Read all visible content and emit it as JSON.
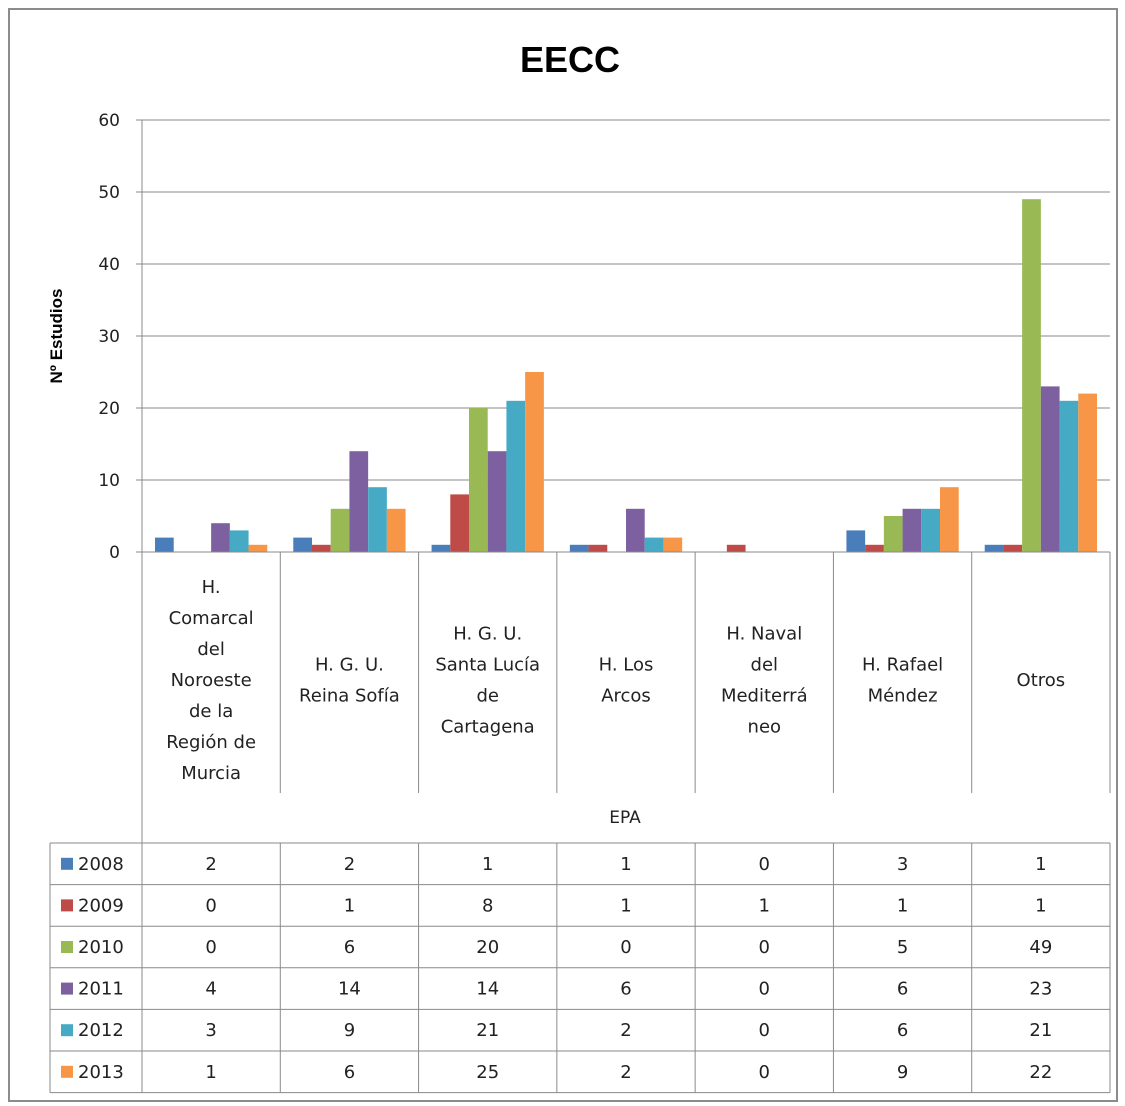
{
  "chart_data": {
    "type": "bar",
    "title": "EECC",
    "xlabel": "EPA",
    "ylabel": "Nº Estudios",
    "ylim": [
      0,
      60
    ],
    "yticks": [
      0,
      10,
      20,
      30,
      40,
      50,
      60
    ],
    "grid": true,
    "legend": "data-table",
    "categories": [
      "H. Comarcal del Noroeste de la Región de Murcia",
      "H. G. U. Reina Sofía",
      "H. G. U. Santa Lucía de Cartagena",
      "H. Los Arcos",
      "H. Naval del Mediterráneo",
      "H. Rafael Méndez",
      "Otros"
    ],
    "category_lines": [
      [
        "H.",
        "Comarcal",
        "del",
        "Noroeste",
        "de la",
        "Región de",
        "Murcia"
      ],
      [
        "H. G. U.",
        "Reina Sofía"
      ],
      [
        "H. G. U.",
        "Santa Lucía",
        "de",
        "Cartagena"
      ],
      [
        "H. Los",
        "Arcos"
      ],
      [
        "H. Naval",
        "del",
        "Mediterrá",
        "neo"
      ],
      [
        "H. Rafael",
        "Méndez"
      ],
      [
        "Otros"
      ]
    ],
    "series": [
      {
        "name": "2008",
        "color": "#4a7ebb",
        "values": [
          2,
          2,
          1,
          1,
          0,
          3,
          1
        ]
      },
      {
        "name": "2009",
        "color": "#be4b48",
        "values": [
          0,
          1,
          8,
          1,
          1,
          1,
          1
        ]
      },
      {
        "name": "2010",
        "color": "#98b954",
        "values": [
          0,
          6,
          20,
          0,
          0,
          5,
          49
        ]
      },
      {
        "name": "2011",
        "color": "#7d60a0",
        "values": [
          4,
          14,
          14,
          6,
          0,
          6,
          23
        ]
      },
      {
        "name": "2012",
        "color": "#46aac5",
        "values": [
          3,
          9,
          21,
          2,
          0,
          6,
          21
        ]
      },
      {
        "name": "2013",
        "color": "#f79646",
        "values": [
          1,
          6,
          25,
          2,
          0,
          9,
          22
        ]
      }
    ]
  }
}
